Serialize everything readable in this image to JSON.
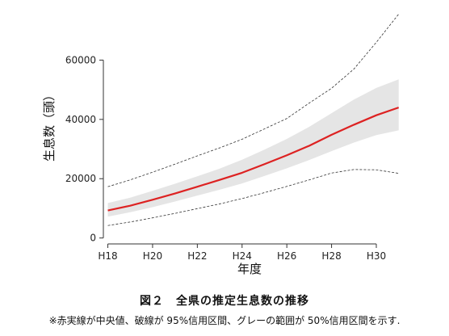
{
  "chart_data": {
    "type": "line",
    "xlabel": "年度",
    "ylabel": "生息数（頭）",
    "x_tick_labels": [
      "H18",
      "H20",
      "H22",
      "H24",
      "H26",
      "H28",
      "H30"
    ],
    "x_ticks": [
      18,
      20,
      22,
      24,
      26,
      28,
      30
    ],
    "xlim": [
      17.8,
      31.3
    ],
    "y_tick_labels": [
      "0",
      "20000",
      "40000",
      "60000"
    ],
    "y_ticks": [
      0,
      20000,
      40000,
      60000
    ],
    "ylim": [
      -2000,
      77000
    ],
    "x": [
      18,
      19,
      20,
      21,
      22,
      23,
      24,
      25,
      26,
      27,
      28,
      29,
      30,
      31
    ],
    "series": [
      {
        "role": "median",
        "color": "#dd2222",
        "values": [
          9300,
          10900,
          12900,
          15000,
          17300,
          19600,
          22000,
          24900,
          27900,
          31100,
          34800,
          38200,
          41400,
          44000
        ]
      },
      {
        "role": "ci95_upper",
        "color": "#333333",
        "values": [
          17300,
          19600,
          22200,
          24900,
          27700,
          30400,
          33300,
          36800,
          40300,
          45500,
          50500,
          57000,
          66000,
          75500
        ]
      },
      {
        "role": "ci95_lower",
        "color": "#333333",
        "values": [
          4200,
          5400,
          6800,
          8300,
          9900,
          11500,
          13300,
          15300,
          17400,
          19600,
          21900,
          23100,
          23000,
          21800
        ]
      },
      {
        "role": "ci50_upper",
        "color": "#e5e5e5",
        "values": [
          11800,
          13600,
          15900,
          18300,
          20800,
          23400,
          26400,
          29800,
          33400,
          37500,
          42100,
          46700,
          50600,
          53500
        ]
      },
      {
        "role": "ci50_lower",
        "color": "#e5e5e5",
        "values": [
          7200,
          8700,
          10400,
          12300,
          14300,
          16300,
          18400,
          20900,
          23500,
          26300,
          29300,
          32200,
          34700,
          36300
        ]
      }
    ],
    "grid": false
  },
  "caption": {
    "title": "図２　全県の推定生息数の推移",
    "note": "※赤実線が中央値、破線が 95%信用区間、グレーの範囲が 50%信用区間を示す."
  }
}
